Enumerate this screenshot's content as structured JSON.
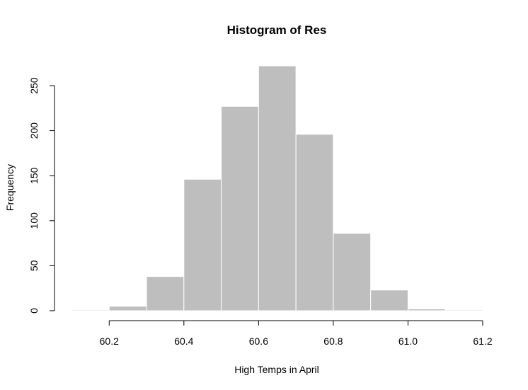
{
  "chart_data": {
    "type": "bar",
    "title": "Histogram of Res",
    "xlabel": "High Temps in April",
    "ylabel": "Frequency",
    "bins": [
      {
        "from": 60.1,
        "to": 60.2,
        "count": 1
      },
      {
        "from": 60.2,
        "to": 60.3,
        "count": 5
      },
      {
        "from": 60.3,
        "to": 60.4,
        "count": 38
      },
      {
        "from": 60.4,
        "to": 60.5,
        "count": 146
      },
      {
        "from": 60.5,
        "to": 60.6,
        "count": 227
      },
      {
        "from": 60.6,
        "to": 60.7,
        "count": 272
      },
      {
        "from": 60.7,
        "to": 60.8,
        "count": 196
      },
      {
        "from": 60.8,
        "to": 60.9,
        "count": 86
      },
      {
        "from": 60.9,
        "to": 61.0,
        "count": 23
      },
      {
        "from": 61.0,
        "to": 61.1,
        "count": 2
      },
      {
        "from": 61.1,
        "to": 61.2,
        "count": 1
      }
    ],
    "x_ticks": [
      "60.2",
      "60.4",
      "60.6",
      "60.8",
      "61.0",
      "61.2"
    ],
    "y_ticks": [
      "0",
      "50",
      "100",
      "150",
      "200",
      "250"
    ],
    "xlim": [
      60.1,
      61.2
    ],
    "ylim": [
      0,
      272
    ],
    "bar_color": "#bebebe",
    "bar_border_color": "#ffffff",
    "grid": false,
    "legend": "none"
  }
}
